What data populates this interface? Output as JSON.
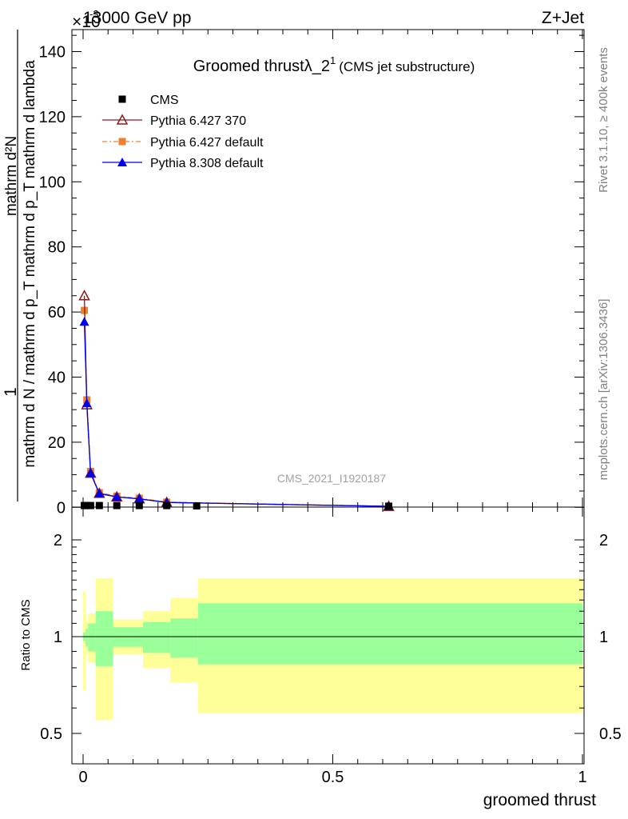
{
  "header": {
    "energy": "13000 GeV pp",
    "process": "Z+Jet",
    "exponent": "×10",
    "exponent_power": "-3"
  },
  "side_labels": {
    "rivet": "Rivet 3.1.10, ≥ 400k events",
    "mcplots": "mcplots.cern.ch [arXiv:1306.3436]"
  },
  "watermark": "CMS_2021_I1920187",
  "chart_data": [
    {
      "type": "line",
      "title_main": "Groomed thrust",
      "title_lambda": "λ_2",
      "title_sup": "1",
      "title_suffix": "(CMS jet substructure)",
      "ylabel_top": "1",
      "ylabel_bottom": "mathrm d N / mathrm d p_T mathrm d p_T mathrm d lambda",
      "ylabel_numer": "mathrm d²N",
      "xlabel": "groomed thrust",
      "xlim": [
        0,
        1
      ],
      "ylim": [
        0,
        148
      ],
      "yticks": [
        0,
        20,
        40,
        60,
        80,
        100,
        120,
        140
      ],
      "yticklabels": [
        "0",
        "20",
        "40",
        "60",
        "80",
        "100",
        "120",
        "140"
      ],
      "legend": [
        {
          "name": "CMS",
          "color": "#000000",
          "marker": "square"
        },
        {
          "name": "Pythia 6.427 370",
          "color": "#8b1a1a",
          "marker": "open-triangle"
        },
        {
          "name": "Pythia 6.427 default",
          "color": "#ee7f2d",
          "marker": "square"
        },
        {
          "name": "Pythia 8.308 default",
          "color": "#0000ee",
          "marker": "triangle"
        }
      ],
      "series": [
        {
          "name": "CMS",
          "x": [
            0.0025,
            0.0075,
            0.015,
            0.0325,
            0.0675,
            0.1125,
            0.1675,
            0.2275,
            0.612
          ],
          "y": [
            0.3,
            0.3,
            0.3,
            0.3,
            0.3,
            0.3,
            0.3,
            0.2,
            0.1
          ]
        },
        {
          "name": "Pythia 6.427 370",
          "x": [
            0.0025,
            0.0075,
            0.015,
            0.0325,
            0.0675,
            0.1125,
            0.1675,
            0.612
          ],
          "y": [
            65,
            31.5,
            10.5,
            4.3,
            3.2,
            2.6,
            1.5,
            0.3
          ]
        },
        {
          "name": "Pythia 6.427 default",
          "x": [
            0.0025,
            0.0075,
            0.015,
            0.0325,
            0.0675,
            0.1125,
            0.1675,
            0.612
          ],
          "y": [
            60.5,
            33,
            11,
            4.5,
            3.4,
            2.8,
            1.6,
            0.3
          ]
        },
        {
          "name": "Pythia 8.308 default",
          "x": [
            0.0025,
            0.0075,
            0.015,
            0.0325,
            0.0675,
            0.1125,
            0.1675,
            0.612
          ],
          "y": [
            57,
            32,
            10.5,
            4.2,
            3.2,
            2.6,
            1.5,
            0.3
          ]
        }
      ]
    },
    {
      "type": "area",
      "ylabel": "Ratio to CMS",
      "xlabel": "groomed thrust",
      "xlim": [
        0,
        1
      ],
      "ylim": [
        0.38,
        2.25
      ],
      "yticklabels": [
        "0.5",
        "1",
        "2"
      ],
      "xticklabels": [
        "0",
        "0.5",
        "1"
      ],
      "inner_color": "#99ff99",
      "outer_color": "#ffff99",
      "bands": [
        {
          "x0": 0.0,
          "x1": 0.005,
          "inner": [
            0.97,
            1.03
          ],
          "outer": [
            0.68,
            1.38
          ]
        },
        {
          "x0": 0.005,
          "x1": 0.01,
          "inner": [
            0.93,
            1.06
          ],
          "outer": [
            0.88,
            1.12
          ]
        },
        {
          "x0": 0.01,
          "x1": 0.025,
          "inner": [
            0.9,
            1.1
          ],
          "outer": [
            0.83,
            1.18
          ]
        },
        {
          "x0": 0.025,
          "x1": 0.06,
          "inner": [
            0.81,
            1.2
          ],
          "outer": [
            0.55,
            1.52
          ]
        },
        {
          "x0": 0.06,
          "x1": 0.12,
          "inner": [
            0.93,
            1.07
          ],
          "outer": [
            0.88,
            1.13
          ]
        },
        {
          "x0": 0.12,
          "x1": 0.175,
          "inner": [
            0.89,
            1.11
          ],
          "outer": [
            0.8,
            1.2
          ]
        },
        {
          "x0": 0.175,
          "x1": 0.23,
          "inner": [
            0.86,
            1.14
          ],
          "outer": [
            0.72,
            1.32
          ]
        },
        {
          "x0": 0.23,
          "x1": 1.0,
          "inner": [
            0.82,
            1.27
          ],
          "outer": [
            0.58,
            1.52
          ]
        }
      ]
    }
  ]
}
